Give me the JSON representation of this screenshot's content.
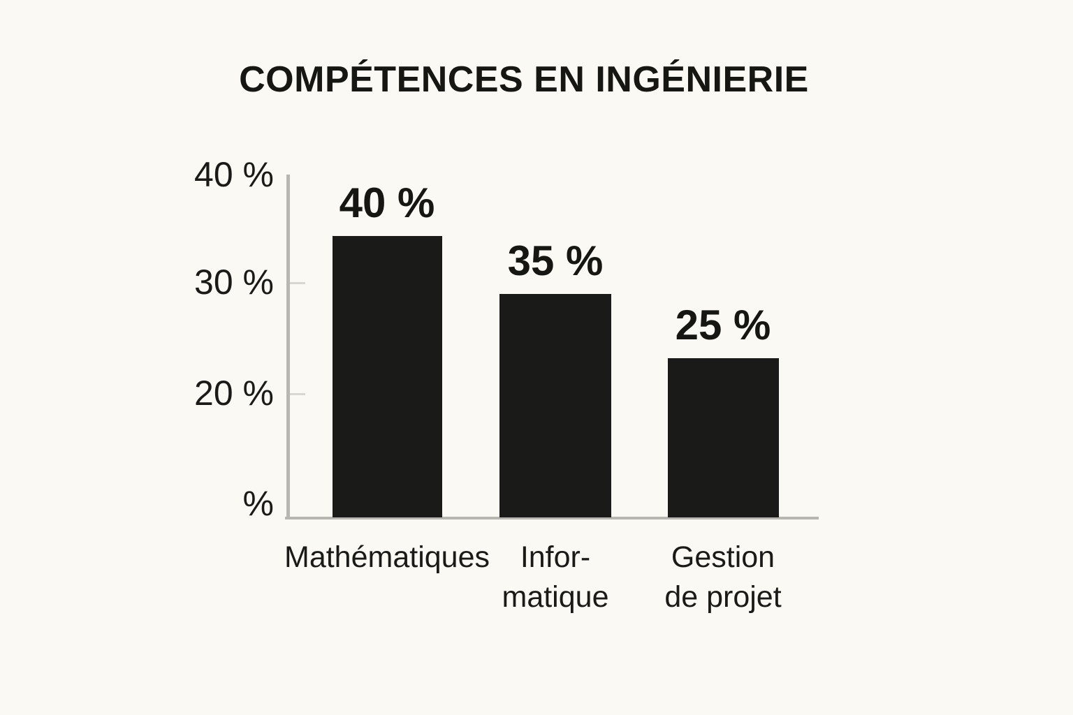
{
  "title": "COMPÉTENCES EN INGÉNIERIE",
  "colors": {
    "background": "#faf9f3",
    "bar": "#1a1a18",
    "axis": "#b7b6b1",
    "tick": "#d8d7d2",
    "text": "#161613"
  },
  "chart_data": {
    "type": "bar",
    "title": "COMPÉTENCES EN INGÉNIERIE",
    "categories": [
      "Mathématiques",
      "Informatique",
      "Gestion de projet"
    ],
    "category_label_lines": [
      [
        "Mathématiques"
      ],
      [
        "Infor-",
        "matique"
      ],
      [
        "Gestion",
        "de projet"
      ]
    ],
    "values": [
      40,
      35,
      25
    ],
    "value_labels": [
      "40 %",
      "35 %",
      "25 %"
    ],
    "unit": "%",
    "xlabel": "",
    "ylabel": "",
    "y_axis": {
      "tick_labels": [
        "40 %",
        "30 %",
        "20 %",
        "%"
      ],
      "tick_values": [
        40,
        30,
        20,
        0
      ],
      "range": [
        0,
        40
      ]
    },
    "grid": false,
    "legend": false,
    "bar_color": "#1a1a18",
    "layout_hints": {
      "value_labels_position": "above-bars",
      "y_labels_position": "left",
      "ticks_inside": true
    }
  }
}
